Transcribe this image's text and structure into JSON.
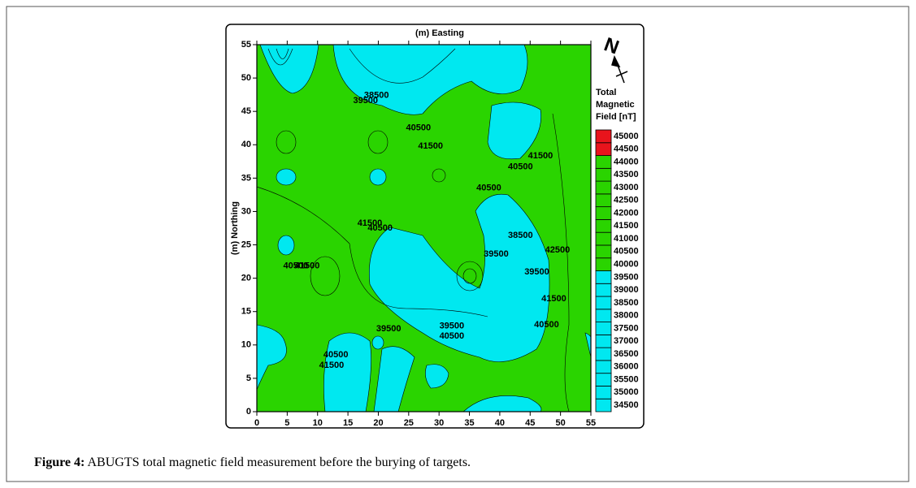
{
  "chart_data": {
    "type": "contour",
    "x_label": "(m) Easting",
    "y_label": "(m) Northing",
    "xlim": [
      0,
      55
    ],
    "ylim": [
      0,
      55
    ],
    "xticks": [
      0,
      5,
      10,
      15,
      20,
      25,
      30,
      35,
      40,
      45,
      50,
      55
    ],
    "yticks": [
      0,
      5,
      10,
      15,
      20,
      25,
      30,
      35,
      40,
      45,
      50,
      55
    ],
    "colorbar": {
      "title": [
        "Total",
        "Magnetic",
        "Field [nT]"
      ],
      "levels": [
        34500,
        35000,
        35500,
        36000,
        36500,
        37000,
        37500,
        38000,
        38500,
        39000,
        39500,
        40000,
        40500,
        41000,
        41500,
        42000,
        42500,
        43000,
        43500,
        44000,
        44500,
        45000
      ],
      "colors": [
        {
          "from": 34500,
          "color": "#00e8f0"
        },
        {
          "from": 40000,
          "color": "#2ad400"
        },
        {
          "from": 44500,
          "color": "#e8141c"
        }
      ]
    },
    "north_label": "N",
    "contour_labels": [
      {
        "x": 19.7,
        "y": 47.4,
        "value": 38500
      },
      {
        "x": 17.9,
        "y": 46.6,
        "value": 39500
      },
      {
        "x": 26.6,
        "y": 42.5,
        "value": 40500
      },
      {
        "x": 28.6,
        "y": 39.8,
        "value": 41500
      },
      {
        "x": 18.6,
        "y": 28.2,
        "value": 41500
      },
      {
        "x": 20.3,
        "y": 27.5,
        "value": 40500
      },
      {
        "x": 38.2,
        "y": 33.5,
        "value": 40500
      },
      {
        "x": 43.4,
        "y": 36.7,
        "value": 40500
      },
      {
        "x": 46.7,
        "y": 38.3,
        "value": 41500
      },
      {
        "x": 43.4,
        "y": 26.4,
        "value": 38500
      },
      {
        "x": 39.4,
        "y": 23.6,
        "value": 39500
      },
      {
        "x": 49.5,
        "y": 24.2,
        "value": 42500
      },
      {
        "x": 46.1,
        "y": 20.9,
        "value": 39500
      },
      {
        "x": 48.9,
        "y": 16.9,
        "value": 41500
      },
      {
        "x": 47.7,
        "y": 13.0,
        "value": 40500
      },
      {
        "x": 6.4,
        "y": 21.8,
        "value": 40500
      },
      {
        "x": 8.3,
        "y": 21.8,
        "value": 41500
      },
      {
        "x": 21.7,
        "y": 12.4,
        "value": 39500
      },
      {
        "x": 32.1,
        "y": 12.8,
        "value": 39500
      },
      {
        "x": 32.1,
        "y": 11.3,
        "value": 40500
      },
      {
        "x": 13.0,
        "y": 8.5,
        "value": 40500
      },
      {
        "x": 12.3,
        "y": 6.9,
        "value": 41500
      }
    ]
  },
  "caption": {
    "label": "Figure 4:",
    "text": " ABUGTS total magnetic field measurement before the burying of targets."
  }
}
